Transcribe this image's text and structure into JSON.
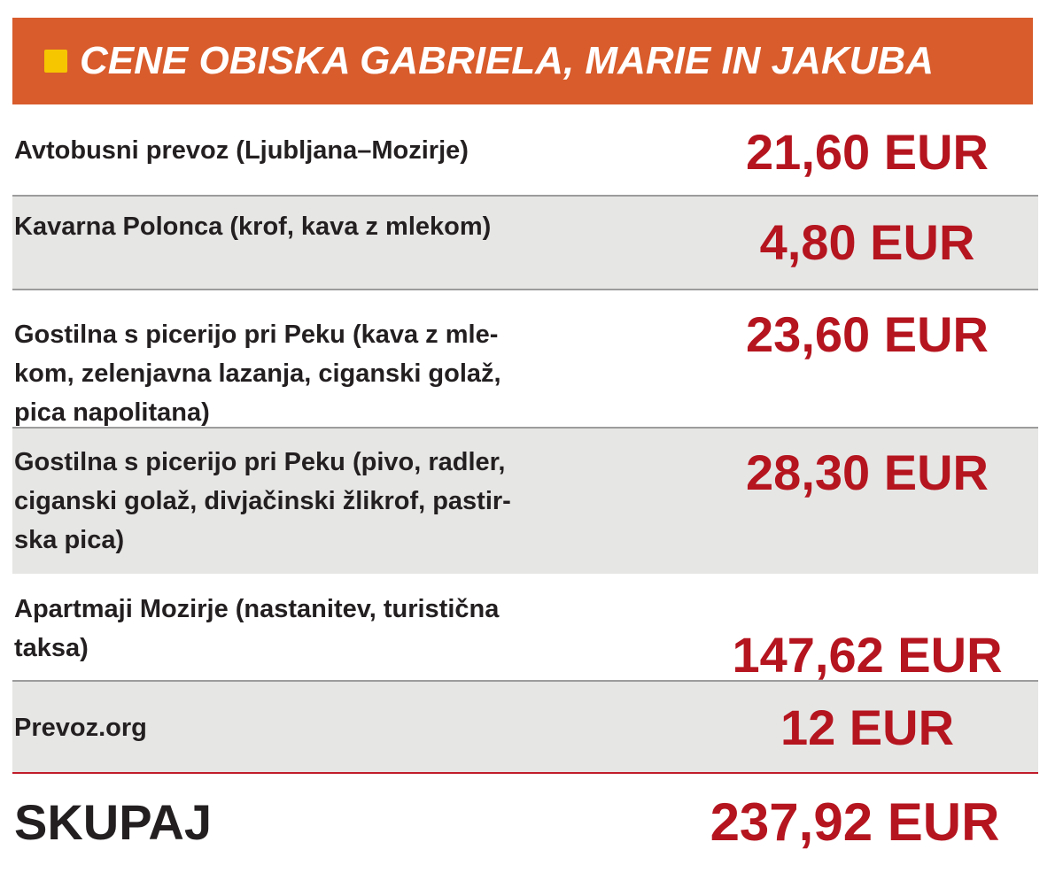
{
  "colors": {
    "header_bg": "#d85c2c",
    "accent": "#f6c600",
    "price": "#b5151f"
  },
  "header": {
    "title": "CENE OBISKA GABRIELA, MARIE IN JAKUBA"
  },
  "rows": [
    {
      "label": "Avtobusni prevoz (Ljubljana–Mozirje)",
      "price": "21,60 EUR"
    },
    {
      "label": "Kavarna Polonca (krof, kava z mlekom)",
      "price": "4,80 EUR"
    },
    {
      "label": "Gostilna s picerijo pri Peku (kava z mle-\nkom, zelenjavna lazanja, ciganski golaž,\npica napolitana)",
      "price": "23,60 EUR"
    },
    {
      "label": "Gostilna s picerijo pri Peku (pivo, radler,\nciganski golaž, divjačinski žlikrof, pastir-\nska pica)",
      "price": "28,30 EUR"
    },
    {
      "label": "Apartmaji Mozirje (nastanitev, turistična\ntaksa)",
      "price": "147,62 EUR"
    },
    {
      "label": "Prevoz.org",
      "price": "12 EUR"
    }
  ],
  "total": {
    "label": "SKUPAJ",
    "price": "237,92 EUR"
  }
}
